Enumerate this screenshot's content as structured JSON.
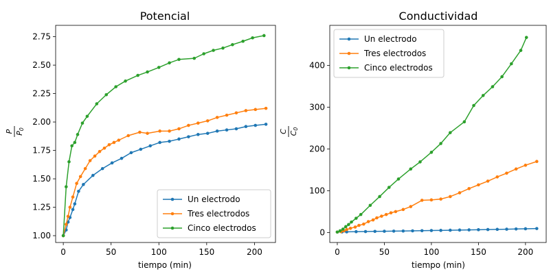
{
  "chart_data": [
    {
      "type": "line",
      "title": "Potencial",
      "xlabel": "tiempo (min)",
      "ylabel": "P / P0",
      "ylabel_num": "P",
      "ylabel_den": "P",
      "ylabel_den_sub": "0",
      "xlim": [
        -8,
        222
      ],
      "ylim": [
        0.94,
        2.85
      ],
      "xticks": [
        0,
        50,
        100,
        150,
        200
      ],
      "yticks": [
        1.0,
        1.25,
        1.5,
        1.75,
        2.0,
        2.25,
        2.5,
        2.75
      ],
      "ytick_labels": [
        "1.00",
        "1.25",
        "1.50",
        "1.75",
        "2.00",
        "2.25",
        "2.50",
        "2.75"
      ],
      "grid": false,
      "legend_position": "lower-right",
      "series": [
        {
          "name": "Un electrodo",
          "color": "#1f77b4",
          "points": [
            [
              0,
              1.0
            ],
            [
              3,
              1.05
            ],
            [
              5,
              1.12
            ],
            [
              7,
              1.16
            ],
            [
              10,
              1.23
            ],
            [
              12,
              1.28
            ],
            [
              16,
              1.39
            ],
            [
              21,
              1.45
            ],
            [
              31,
              1.53
            ],
            [
              41,
              1.59
            ],
            [
              51,
              1.64
            ],
            [
              61,
              1.68
            ],
            [
              71,
              1.73
            ],
            [
              81,
              1.76
            ],
            [
              91,
              1.79
            ],
            [
              101,
              1.82
            ],
            [
              111,
              1.83
            ],
            [
              121,
              1.85
            ],
            [
              131,
              1.87
            ],
            [
              141,
              1.89
            ],
            [
              151,
              1.9
            ],
            [
              161,
              1.92
            ],
            [
              171,
              1.93
            ],
            [
              181,
              1.94
            ],
            [
              191,
              1.96
            ],
            [
              201,
              1.97
            ],
            [
              212,
              1.98
            ]
          ]
        },
        {
          "name": "Tres electrodos",
          "color": "#ff7f0e",
          "points": [
            [
              0,
              1.0
            ],
            [
              3,
              1.1
            ],
            [
              5,
              1.17
            ],
            [
              7,
              1.25
            ],
            [
              10,
              1.34
            ],
            [
              14,
              1.46
            ],
            [
              18,
              1.52
            ],
            [
              23,
              1.59
            ],
            [
              28,
              1.66
            ],
            [
              33,
              1.7
            ],
            [
              38,
              1.74
            ],
            [
              43,
              1.77
            ],
            [
              48,
              1.8
            ],
            [
              53,
              1.82
            ],
            [
              58,
              1.84
            ],
            [
              68,
              1.88
            ],
            [
              80,
              1.91
            ],
            [
              88,
              1.9
            ],
            [
              101,
              1.92
            ],
            [
              111,
              1.92
            ],
            [
              121,
              1.94
            ],
            [
              131,
              1.97
            ],
            [
              141,
              1.99
            ],
            [
              151,
              2.01
            ],
            [
              161,
              2.04
            ],
            [
              171,
              2.06
            ],
            [
              181,
              2.08
            ],
            [
              191,
              2.1
            ],
            [
              201,
              2.11
            ],
            [
              212,
              2.12
            ]
          ]
        },
        {
          "name": "Cinco electrodos",
          "color": "#2ca02c",
          "points": [
            [
              0,
              1.0
            ],
            [
              3,
              1.43
            ],
            [
              6,
              1.65
            ],
            [
              9,
              1.79
            ],
            [
              12,
              1.82
            ],
            [
              15,
              1.89
            ],
            [
              20,
              1.99
            ],
            [
              25,
              2.05
            ],
            [
              35,
              2.16
            ],
            [
              45,
              2.24
            ],
            [
              55,
              2.31
            ],
            [
              65,
              2.36
            ],
            [
              78,
              2.41
            ],
            [
              88,
              2.44
            ],
            [
              100,
              2.48
            ],
            [
              111,
              2.52
            ],
            [
              121,
              2.55
            ],
            [
              137,
              2.56
            ],
            [
              147,
              2.6
            ],
            [
              157,
              2.63
            ],
            [
              167,
              2.65
            ],
            [
              177,
              2.68
            ],
            [
              188,
              2.71
            ],
            [
              198,
              2.74
            ],
            [
              210,
              2.76
            ]
          ]
        }
      ]
    },
    {
      "type": "line",
      "title": "Conductividad",
      "xlabel": "tiempo (min)",
      "ylabel": "C / C0",
      "ylabel_num": "C",
      "ylabel_den": "C",
      "ylabel_den_sub": "0",
      "xlim": [
        -8,
        222
      ],
      "ylim": [
        -24,
        496
      ],
      "xticks": [
        0,
        50,
        100,
        150,
        200
      ],
      "yticks": [
        0,
        100,
        200,
        300,
        400
      ],
      "ytick_labels": [
        "0",
        "100",
        "200",
        "300",
        "400"
      ],
      "grid": false,
      "legend_position": "upper-left",
      "series": [
        {
          "name": "Un electrodo",
          "color": "#1f77b4",
          "points": [
            [
              0,
              1
            ],
            [
              5,
              1.3
            ],
            [
              10,
              1.5
            ],
            [
              20,
              1.9
            ],
            [
              30,
              2.2
            ],
            [
              40,
              2.6
            ],
            [
              50,
              2.9
            ],
            [
              60,
              3.2
            ],
            [
              70,
              3.5
            ],
            [
              80,
              3.9
            ],
            [
              90,
              4.2
            ],
            [
              100,
              4.6
            ],
            [
              110,
              5
            ],
            [
              120,
              5.4
            ],
            [
              130,
              5.8
            ],
            [
              140,
              6.2
            ],
            [
              150,
              6.6
            ],
            [
              160,
              7
            ],
            [
              170,
              7.4
            ],
            [
              180,
              7.8
            ],
            [
              190,
              8.3
            ],
            [
              200,
              8.9
            ],
            [
              212,
              9.4
            ]
          ]
        },
        {
          "name": "Tres electrodos",
          "color": "#ff7f0e",
          "points": [
            [
              0,
              1
            ],
            [
              4,
              2
            ],
            [
              7,
              4
            ],
            [
              10,
              7
            ],
            [
              14,
              10
            ],
            [
              19,
              13
            ],
            [
              23,
              17
            ],
            [
              28,
              20
            ],
            [
              33,
              26
            ],
            [
              38,
              30
            ],
            [
              42,
              35
            ],
            [
              47,
              39
            ],
            [
              52,
              43
            ],
            [
              57,
              47
            ],
            [
              62,
              50
            ],
            [
              70,
              55
            ],
            [
              78,
              62
            ],
            [
              90,
              77
            ],
            [
              100,
              78
            ],
            [
              110,
              80
            ],
            [
              120,
              86
            ],
            [
              130,
              95
            ],
            [
              140,
              105
            ],
            [
              150,
              114
            ],
            [
              160,
              123
            ],
            [
              170,
              133
            ],
            [
              180,
              142
            ],
            [
              190,
              152
            ],
            [
              200,
              161
            ],
            [
              212,
              170
            ]
          ]
        },
        {
          "name": "Cinco electrodos",
          "color": "#2ca02c",
          "points": [
            [
              0,
              1
            ],
            [
              3,
              4
            ],
            [
              6,
              8
            ],
            [
              9,
              14
            ],
            [
              12,
              19
            ],
            [
              15,
              25
            ],
            [
              20,
              34
            ],
            [
              25,
              43
            ],
            [
              35,
              65
            ],
            [
              45,
              86
            ],
            [
              55,
              108
            ],
            [
              65,
              128
            ],
            [
              78,
              152
            ],
            [
              88,
              169
            ],
            [
              100,
              192
            ],
            [
              110,
              213
            ],
            [
              120,
              239
            ],
            [
              135,
              265
            ],
            [
              145,
              304
            ],
            [
              155,
              328
            ],
            [
              165,
              349
            ],
            [
              175,
              373
            ],
            [
              185,
              404
            ],
            [
              195,
              436
            ],
            [
              201,
              467
            ]
          ]
        }
      ]
    }
  ]
}
